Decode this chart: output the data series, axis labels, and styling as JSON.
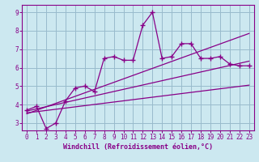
{
  "xlabel": "Windchill (Refroidissement éolien,°C)",
  "bg_color": "#cce8f0",
  "line_color": "#880088",
  "grid_color": "#99bbcc",
  "xlim": [
    -0.5,
    23.5
  ],
  "ylim": [
    2.6,
    9.4
  ],
  "xticks": [
    0,
    1,
    2,
    3,
    4,
    5,
    6,
    7,
    8,
    9,
    10,
    11,
    12,
    13,
    14,
    15,
    16,
    17,
    18,
    19,
    20,
    21,
    22,
    23
  ],
  "yticks": [
    3,
    4,
    5,
    6,
    7,
    8,
    9
  ],
  "scatter_x": [
    0,
    1,
    2,
    3,
    4,
    5,
    6,
    7,
    8,
    9,
    10,
    11,
    12,
    13,
    14,
    15,
    16,
    17,
    18,
    19,
    20,
    21,
    22,
    23
  ],
  "scatter_y": [
    3.7,
    3.9,
    2.7,
    3.0,
    4.2,
    4.9,
    5.0,
    4.7,
    6.5,
    6.6,
    6.4,
    6.4,
    8.3,
    9.0,
    6.5,
    6.6,
    7.3,
    7.3,
    6.5,
    6.5,
    6.6,
    6.2,
    6.1,
    6.1
  ],
  "line1_x": [
    0,
    23
  ],
  "line1_y": [
    3.65,
    6.35
  ],
  "line2_x": [
    0,
    23
  ],
  "line2_y": [
    3.55,
    5.05
  ],
  "line3_x": [
    0,
    23
  ],
  "line3_y": [
    3.5,
    7.85
  ],
  "tick_fontsize": 5.5,
  "xlabel_fontsize": 6.0
}
